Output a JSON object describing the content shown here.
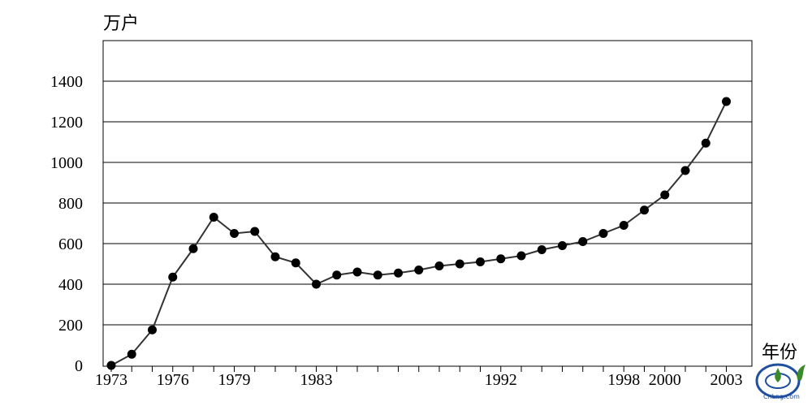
{
  "chart_data": {
    "type": "line",
    "ylabel": "万户",
    "xlabel": "年份",
    "ylim": [
      0,
      1600
    ],
    "y_ticks": [
      0,
      200,
      400,
      600,
      800,
      1000,
      1200,
      1400
    ],
    "x_tick_labels": [
      "1973",
      "1976",
      "1979",
      "1983",
      "1992",
      "1998",
      "2000",
      "2003"
    ],
    "grid": "horizontal",
    "x": [
      1973,
      1974,
      1975,
      1976,
      1977,
      1978,
      1979,
      1980,
      1981,
      1982,
      1983,
      1984,
      1985,
      1986,
      1987,
      1988,
      1989,
      1990,
      1991,
      1992,
      1993,
      1994,
      1995,
      1996,
      1997,
      1998,
      1999,
      2000,
      2001,
      2002,
      2003
    ],
    "values": [
      0,
      55,
      175,
      435,
      575,
      730,
      650,
      660,
      535,
      505,
      400,
      445,
      460,
      445,
      455,
      470,
      490,
      500,
      510,
      525,
      540,
      570,
      590,
      610,
      650,
      690,
      765,
      840,
      960,
      1095,
      1300
    ]
  },
  "watermark": {
    "text": "CnLng.com",
    "colors": {
      "blue": "#1f4fa0",
      "green": "#3a8a2a"
    }
  }
}
